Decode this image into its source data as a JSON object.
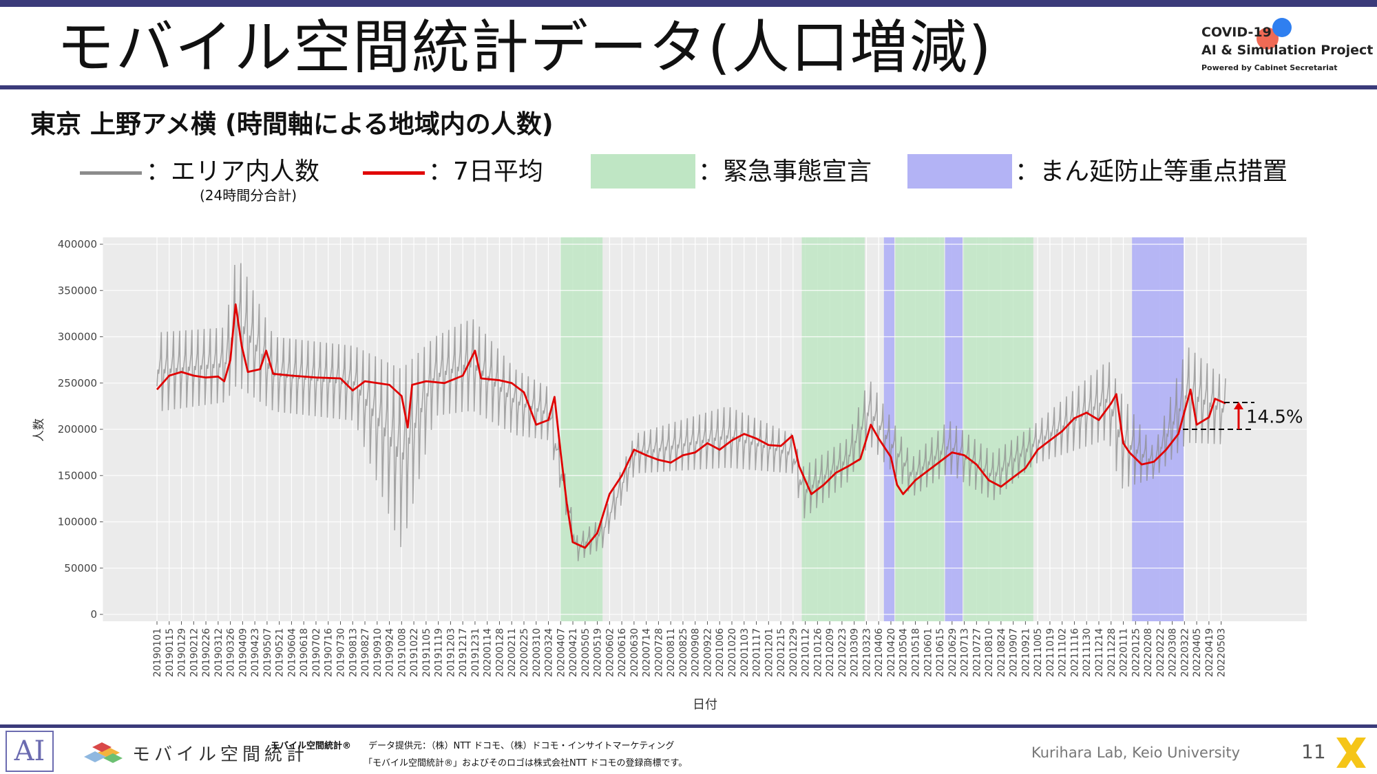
{
  "slide": {
    "title": "モバイル空間統計データ(人口増減)",
    "subtitle": "東京 上野アメ横 (時間軸による地域内の人数)",
    "page_number": "11",
    "credit": "Kurihara Lab, Keio University"
  },
  "logo": {
    "line1": "COVID-19",
    "line2": "AI & Simulation Project",
    "line3": "Powered by Cabinet Secretariat"
  },
  "legend": {
    "gray_label": "：エリア内人数",
    "gray_sub": "(24時間分合計)",
    "red_label": "：7日平均",
    "green_label": "：緊急事態宣言",
    "blue_label": "：まん延防止等重点措置",
    "gray_color": "#8c8c8c",
    "red_color": "#e00000",
    "green_color": "#bfe6c4",
    "blue_color": "#b3b3f5"
  },
  "footer": {
    "mobile_logo_text": "モバイル空間統計",
    "note_brand": "モバイル空間統計®",
    "note_provider": "データ提供元：（株）NTT ドコモ、（株）ドコモ・インサイトマーケティング",
    "note_trademark": "「モバイル空間統計®」およびそのロゴは株式会社NTT ドコモの登録商標です。"
  },
  "chart_data": {
    "type": "line",
    "xlabel": "日付",
    "ylabel": "人数",
    "ylim": [
      0,
      400000
    ],
    "yticks": [
      0,
      50000,
      100000,
      150000,
      200000,
      250000,
      300000,
      350000,
      400000
    ],
    "x_start": "2019-01-01",
    "x_end": "2022-05-08",
    "x_tick_labels": [
      "20190101",
      "20190115",
      "20190129",
      "20190212",
      "20190226",
      "20190312",
      "20190326",
      "20190409",
      "20190423",
      "20190507",
      "20190521",
      "20190604",
      "20190618",
      "20190702",
      "20190716",
      "20190730",
      "20190813",
      "20190827",
      "20190910",
      "20190924",
      "20191008",
      "20191022",
      "20191105",
      "20191119",
      "20191203",
      "20191217",
      "20191231",
      "20200114",
      "20200128",
      "20200211",
      "20200225",
      "20200310",
      "20200324",
      "20200407",
      "20200421",
      "20200505",
      "20200519",
      "20200602",
      "20200616",
      "20200630",
      "20200714",
      "20200728",
      "20200811",
      "20200825",
      "20200908",
      "20200922",
      "20201006",
      "20201020",
      "20201103",
      "20201117",
      "20201201",
      "20201215",
      "20201229",
      "20210112",
      "20210126",
      "20210209",
      "20210223",
      "20210309",
      "20210323",
      "20210406",
      "20210420",
      "20210504",
      "20210518",
      "20210601",
      "20210615",
      "20210629",
      "20210713",
      "20210727",
      "20210810",
      "20210824",
      "20210907",
      "20210921",
      "20211005",
      "20211019",
      "20211102",
      "20211116",
      "20211130",
      "20211214",
      "20211228",
      "20220111",
      "20220125",
      "20220208",
      "20220222",
      "20220308",
      "20220322",
      "20220405",
      "20220419",
      "20220503"
    ],
    "grid": true,
    "shaded_periods": [
      {
        "kind": "緊急事態宣言",
        "start": "2020-04-07",
        "end": "2020-05-25"
      },
      {
        "kind": "緊急事態宣言",
        "start": "2021-01-08",
        "end": "2021-03-21"
      },
      {
        "kind": "まん延防止等重点措置",
        "start": "2021-04-12",
        "end": "2021-04-24"
      },
      {
        "kind": "緊急事態宣言",
        "start": "2021-04-25",
        "end": "2021-06-20"
      },
      {
        "kind": "まん延防止等重点措置",
        "start": "2021-06-21",
        "end": "2021-07-11"
      },
      {
        "kind": "緊急事態宣言",
        "start": "2021-07-12",
        "end": "2021-09-30"
      },
      {
        "kind": "まん延防止等重点措置",
        "start": "2022-01-21",
        "end": "2022-03-21"
      }
    ],
    "series": [
      {
        "name": "エリア内人数",
        "note": "daily values oscillate weekly around the 7-day average",
        "envelope": [
          [
            "2019-01-05",
            305000,
            215000
          ],
          [
            "2019-03-20",
            310000,
            225000
          ],
          [
            "2019-04-02",
            390000,
            240000
          ],
          [
            "2019-05-15",
            300000,
            215000
          ],
          [
            "2019-08-15",
            290000,
            205000
          ],
          [
            "2019-10-08",
            265000,
            60000
          ],
          [
            "2019-11-15",
            300000,
            210000
          ],
          [
            "2019-12-28",
            320000,
            215000
          ],
          [
            "2020-02-15",
            265000,
            190000
          ],
          [
            "2020-03-25",
            245000,
            185000
          ],
          [
            "2020-04-25",
            85000,
            55000
          ],
          [
            "2020-05-25",
            105000,
            70000
          ],
          [
            "2020-07-01",
            195000,
            150000
          ],
          [
            "2020-10-15",
            225000,
            155000
          ],
          [
            "2020-12-28",
            195000,
            150000
          ],
          [
            "2021-01-10",
            160000,
            100000
          ],
          [
            "2021-03-01",
            190000,
            140000
          ],
          [
            "2021-03-26",
            255000,
            180000
          ],
          [
            "2021-05-15",
            170000,
            125000
          ],
          [
            "2021-06-25",
            210000,
            150000
          ],
          [
            "2021-08-15",
            175000,
            120000
          ],
          [
            "2021-10-01",
            205000,
            160000
          ],
          [
            "2021-12-25",
            275000,
            185000
          ],
          [
            "2022-01-08",
            240000,
            130000
          ],
          [
            "2022-02-15",
            180000,
            145000
          ],
          [
            "2022-03-25",
            290000,
            180000
          ],
          [
            "2022-05-07",
            255000,
            180000
          ]
        ]
      },
      {
        "name": "7日平均",
        "points": [
          [
            "2019-01-01",
            243000
          ],
          [
            "2019-01-15",
            258000
          ],
          [
            "2019-01-29",
            262000
          ],
          [
            "2019-02-12",
            258000
          ],
          [
            "2019-02-26",
            256000
          ],
          [
            "2019-03-12",
            257000
          ],
          [
            "2019-03-19",
            252000
          ],
          [
            "2019-03-26",
            275000
          ],
          [
            "2019-04-01",
            335000
          ],
          [
            "2019-04-08",
            290000
          ],
          [
            "2019-04-15",
            262000
          ],
          [
            "2019-04-29",
            265000
          ],
          [
            "2019-05-06",
            285000
          ],
          [
            "2019-05-14",
            260000
          ],
          [
            "2019-06-04",
            258000
          ],
          [
            "2019-07-02",
            256000
          ],
          [
            "2019-07-30",
            255000
          ],
          [
            "2019-08-13",
            242000
          ],
          [
            "2019-08-27",
            252000
          ],
          [
            "2019-09-24",
            248000
          ],
          [
            "2019-10-08",
            236000
          ],
          [
            "2019-10-15",
            202000
          ],
          [
            "2019-10-20",
            248000
          ],
          [
            "2019-11-05",
            252000
          ],
          [
            "2019-11-26",
            250000
          ],
          [
            "2019-12-17",
            258000
          ],
          [
            "2019-12-31",
            285000
          ],
          [
            "2020-01-07",
            255000
          ],
          [
            "2020-01-28",
            253000
          ],
          [
            "2020-02-11",
            250000
          ],
          [
            "2020-02-25",
            240000
          ],
          [
            "2020-03-10",
            205000
          ],
          [
            "2020-03-24",
            210000
          ],
          [
            "2020-03-31",
            235000
          ],
          [
            "2020-04-07",
            175000
          ],
          [
            "2020-04-14",
            120000
          ],
          [
            "2020-04-21",
            78000
          ],
          [
            "2020-05-05",
            72000
          ],
          [
            "2020-05-19",
            88000
          ],
          [
            "2020-06-02",
            130000
          ],
          [
            "2020-06-16",
            150000
          ],
          [
            "2020-06-30",
            178000
          ],
          [
            "2020-07-14",
            172000
          ],
          [
            "2020-07-28",
            167000
          ],
          [
            "2020-08-11",
            164000
          ],
          [
            "2020-08-25",
            172000
          ],
          [
            "2020-09-08",
            175000
          ],
          [
            "2020-09-22",
            185000
          ],
          [
            "2020-10-06",
            178000
          ],
          [
            "2020-10-20",
            188000
          ],
          [
            "2020-11-03",
            195000
          ],
          [
            "2020-11-17",
            190000
          ],
          [
            "2020-12-01",
            183000
          ],
          [
            "2020-12-15",
            182000
          ],
          [
            "2020-12-28",
            193000
          ],
          [
            "2021-01-05",
            160000
          ],
          [
            "2021-01-19",
            130000
          ],
          [
            "2021-02-02",
            140000
          ],
          [
            "2021-02-16",
            153000
          ],
          [
            "2021-03-02",
            160000
          ],
          [
            "2021-03-16",
            168000
          ],
          [
            "2021-03-28",
            205000
          ],
          [
            "2021-04-06",
            190000
          ],
          [
            "2021-04-20",
            170000
          ],
          [
            "2021-04-27",
            140000
          ],
          [
            "2021-05-04",
            130000
          ],
          [
            "2021-05-18",
            145000
          ],
          [
            "2021-06-01",
            155000
          ],
          [
            "2021-06-15",
            165000
          ],
          [
            "2021-06-29",
            175000
          ],
          [
            "2021-07-13",
            172000
          ],
          [
            "2021-07-27",
            162000
          ],
          [
            "2021-08-10",
            145000
          ],
          [
            "2021-08-24",
            138000
          ],
          [
            "2021-09-07",
            148000
          ],
          [
            "2021-09-21",
            158000
          ],
          [
            "2021-10-05",
            178000
          ],
          [
            "2021-10-19",
            188000
          ],
          [
            "2021-11-02",
            198000
          ],
          [
            "2021-11-16",
            212000
          ],
          [
            "2021-11-30",
            218000
          ],
          [
            "2021-12-14",
            210000
          ],
          [
            "2021-12-28",
            228000
          ],
          [
            "2022-01-03",
            238000
          ],
          [
            "2022-01-11",
            185000
          ],
          [
            "2022-01-18",
            175000
          ],
          [
            "2022-02-01",
            162000
          ],
          [
            "2022-02-15",
            165000
          ],
          [
            "2022-03-01",
            178000
          ],
          [
            "2022-03-15",
            195000
          ],
          [
            "2022-03-29",
            243000
          ],
          [
            "2022-04-05",
            205000
          ],
          [
            "2022-04-19",
            213000
          ],
          [
            "2022-04-26",
            233000
          ],
          [
            "2022-05-08",
            228000
          ]
        ]
      }
    ],
    "annotation": {
      "text": "14.5%",
      "from_value": 200000,
      "to_value": 229000
    }
  }
}
